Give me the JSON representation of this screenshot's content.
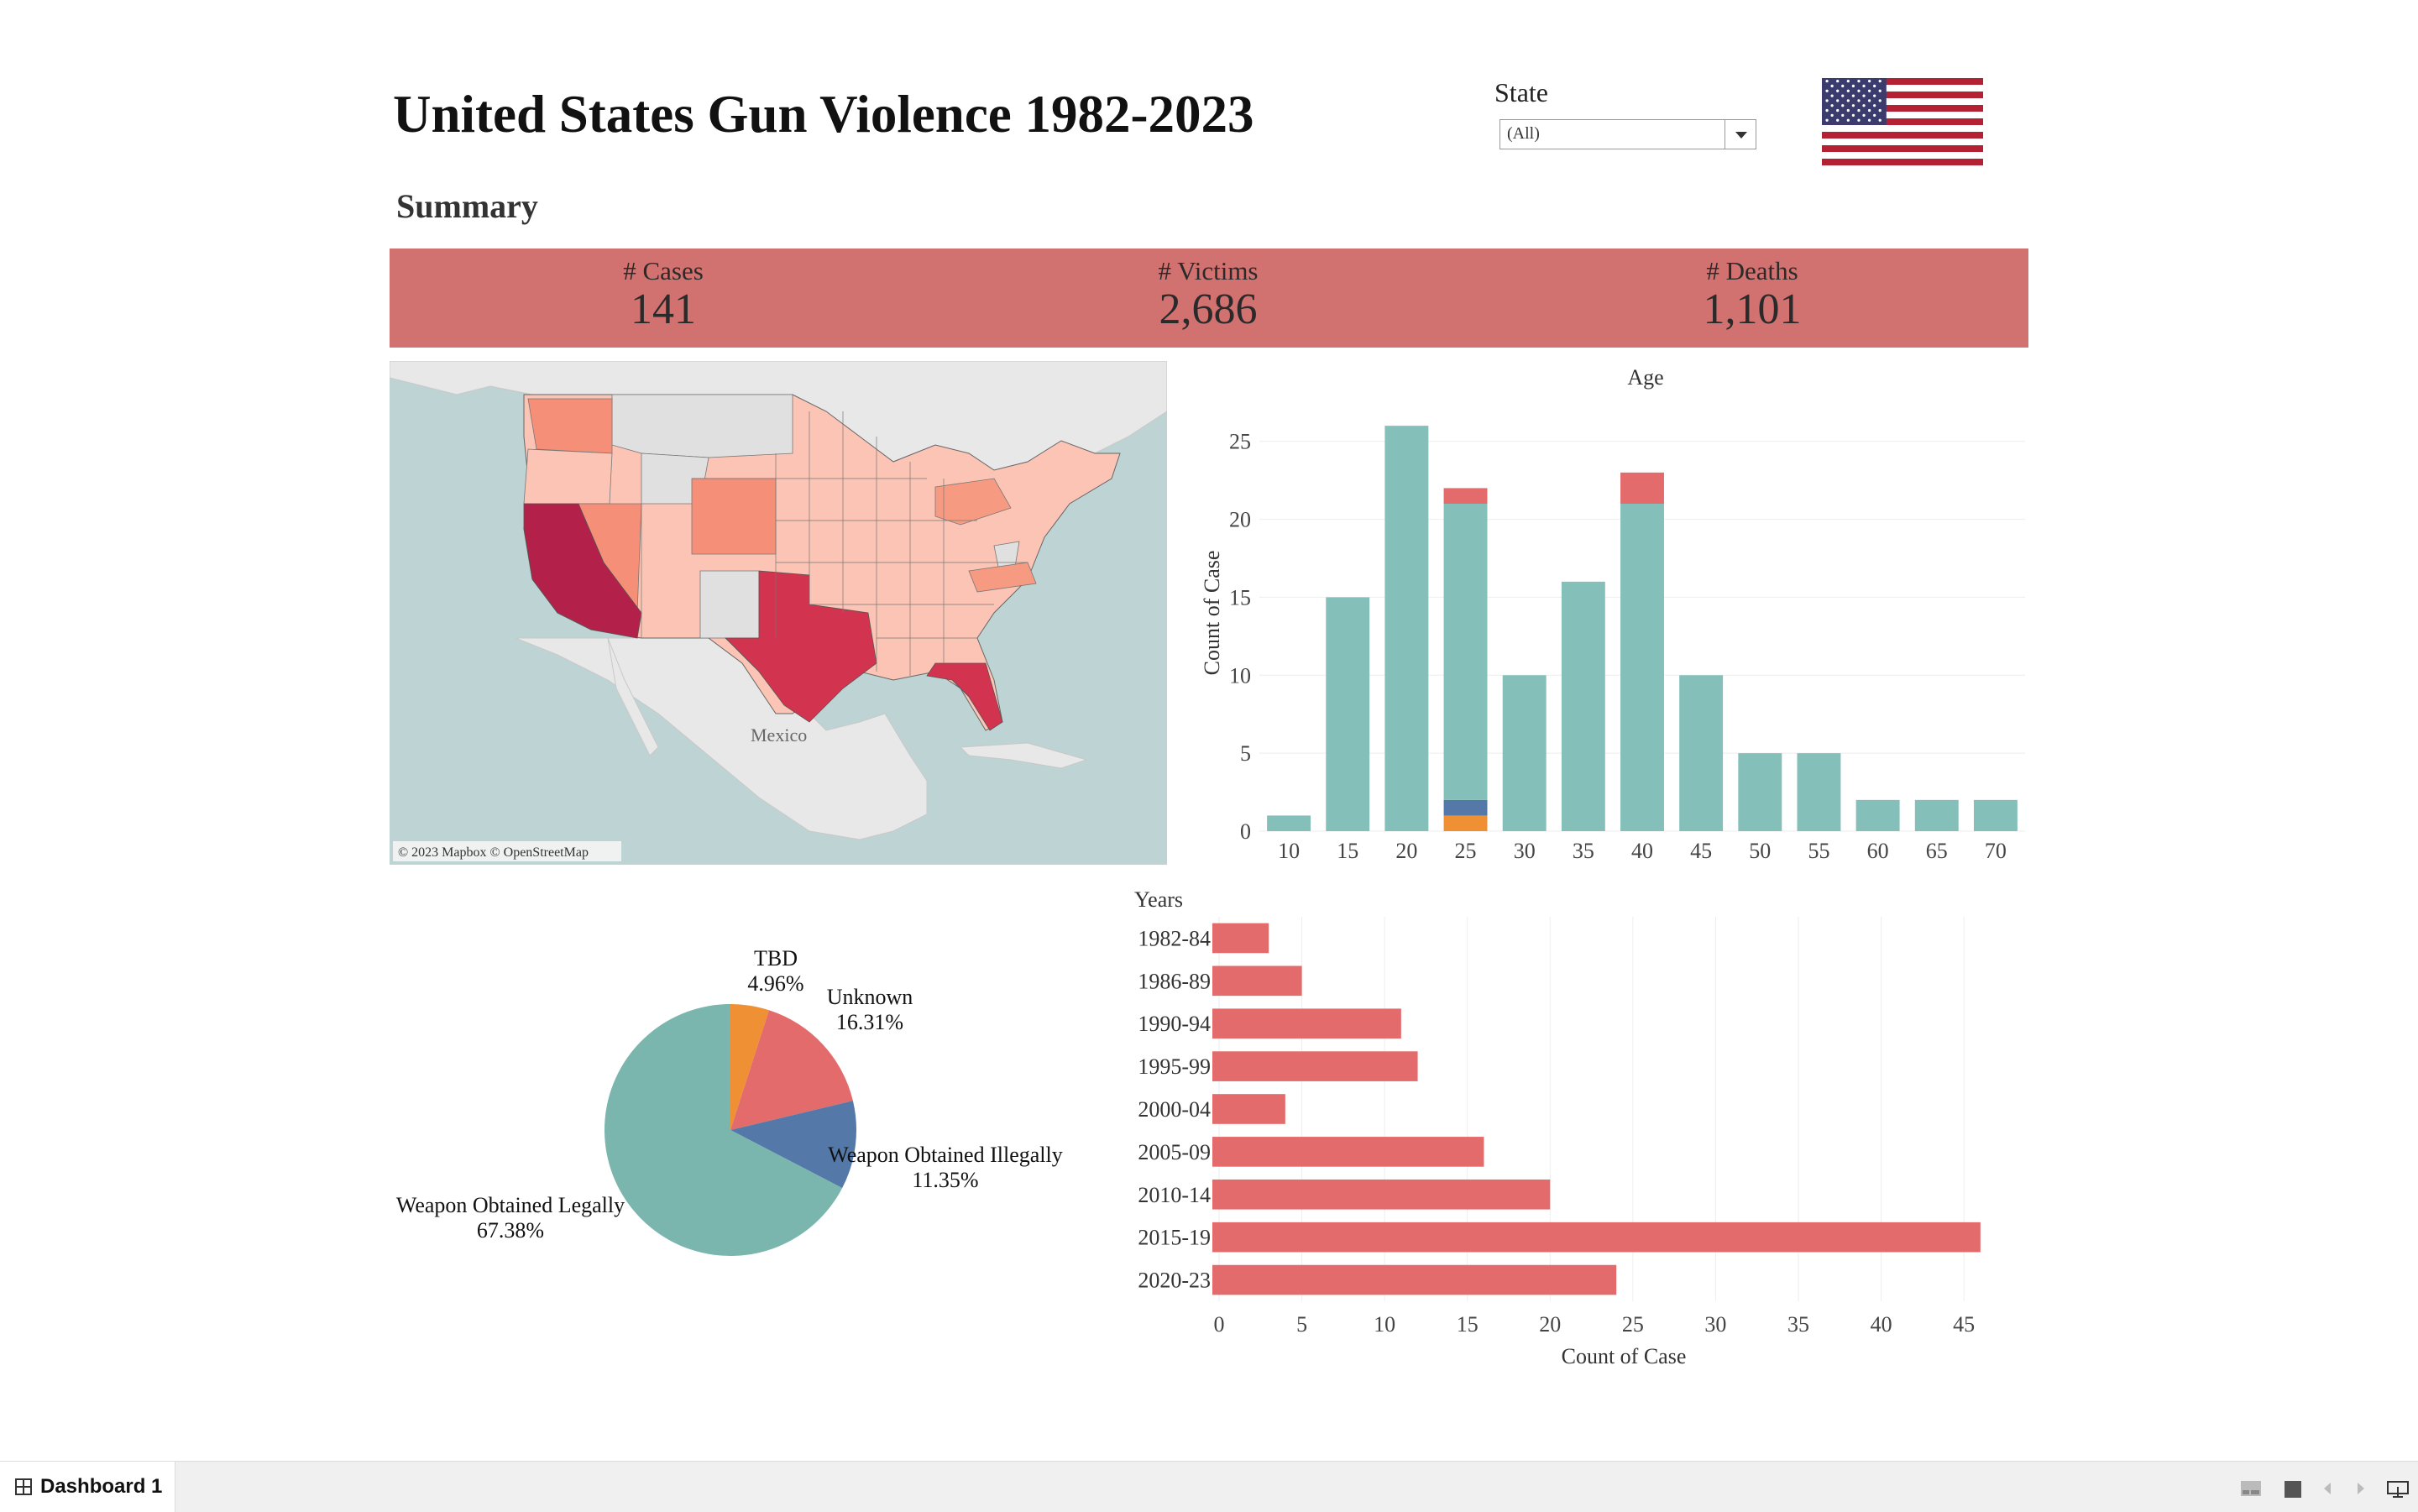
{
  "header": {
    "title": "United States Gun Violence 1982-2023",
    "subtitle": "Summary"
  },
  "filter": {
    "label": "State",
    "value": "(All)"
  },
  "kpis": [
    {
      "label": "# Cases",
      "value": "141"
    },
    {
      "label": "# Victims",
      "value": "2,686"
    },
    {
      "label": "# Deaths",
      "value": "1,101"
    }
  ],
  "map": {
    "label": "Mexico",
    "attribution": "© 2023 Mapbox © OpenStreetMap"
  },
  "colors": {
    "teal": "#84bfb9",
    "red": "#e36b6b",
    "blue": "#5479a8",
    "orange": "#ef9035",
    "kpi_band": "#d17270",
    "pie_teal": "#7ab5ae"
  },
  "chart_data": [
    {
      "type": "bar",
      "title": "Age",
      "ylabel": "Count of Case",
      "xlabel": "",
      "categories": [
        "10",
        "15",
        "20",
        "25",
        "30",
        "35",
        "40",
        "45",
        "50",
        "55",
        "60",
        "65",
        "70"
      ],
      "series": [
        {
          "key": "legal",
          "values": [
            1,
            15,
            26,
            19,
            10,
            16,
            21,
            10,
            5,
            5,
            2,
            2,
            2
          ]
        },
        {
          "key": "illegal",
          "values": [
            0,
            0,
            0,
            1,
            0,
            0,
            0,
            0,
            0,
            0,
            0,
            0,
            0
          ]
        },
        {
          "key": "tbd",
          "values": [
            0,
            0,
            0,
            1,
            0,
            0,
            0,
            0,
            0,
            0,
            0,
            0,
            0
          ]
        },
        {
          "key": "unknown",
          "values": [
            0,
            0,
            0,
            1,
            0,
            0,
            2,
            0,
            0,
            0,
            0,
            0,
            0
          ]
        }
      ],
      "yticks": [
        0,
        5,
        10,
        15,
        20,
        25
      ],
      "ylim": [
        0,
        28
      ]
    },
    {
      "type": "pie",
      "slices": [
        {
          "name": "TBD",
          "label": "4.96%",
          "value": 4.96
        },
        {
          "name": "Unknown",
          "label": "16.31%",
          "value": 16.31
        },
        {
          "name": "Weapon Obtained Illegally",
          "label": "11.35%",
          "value": 11.35
        },
        {
          "name": "Weapon Obtained Legally",
          "label": "67.38%",
          "value": 67.38
        }
      ]
    },
    {
      "type": "bar",
      "orientation": "horizontal",
      "title": "",
      "ylabel": "Years",
      "xlabel": "Count of Case",
      "categories": [
        "1982-84",
        "1986-89",
        "1990-94",
        "1995-99",
        "2000-04",
        "2005-09",
        "2010-14",
        "2015-19",
        "2020-23"
      ],
      "values": [
        3,
        5,
        11,
        12,
        4,
        16,
        20,
        46,
        24
      ],
      "xticks": [
        0,
        5,
        10,
        15,
        20,
        25,
        30,
        35,
        40,
        45
      ],
      "xlim": [
        0,
        49
      ]
    }
  ],
  "footer": {
    "tab_label": "Dashboard 1"
  }
}
